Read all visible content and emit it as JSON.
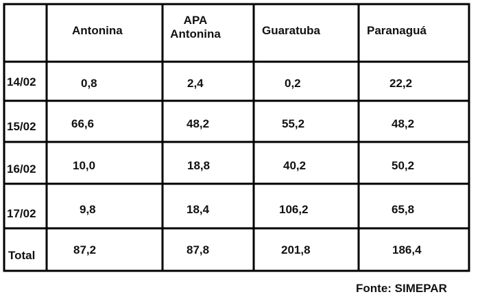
{
  "table": {
    "header": [
      "Antonina",
      "APA Antonina",
      "Guaratuba",
      "Paranaguá"
    ],
    "rows": [
      {
        "label": "14/02",
        "values": [
          "0,8",
          "2,4",
          "0,2",
          "22,2"
        ]
      },
      {
        "label": "15/02",
        "values": [
          "66,6",
          "48,2",
          "55,2",
          "48,2"
        ]
      },
      {
        "label": "16/02",
        "values": [
          "10,0",
          "18,8",
          "40,2",
          "50,2"
        ]
      },
      {
        "label": "17/02",
        "values": [
          "9,8",
          "18,4",
          "106,2",
          "65,8"
        ]
      },
      {
        "label": "Total",
        "values": [
          "87,2",
          "87,8",
          "201,8",
          "186,4"
        ]
      }
    ]
  },
  "footer": "Fonte: SIMEPAR"
}
